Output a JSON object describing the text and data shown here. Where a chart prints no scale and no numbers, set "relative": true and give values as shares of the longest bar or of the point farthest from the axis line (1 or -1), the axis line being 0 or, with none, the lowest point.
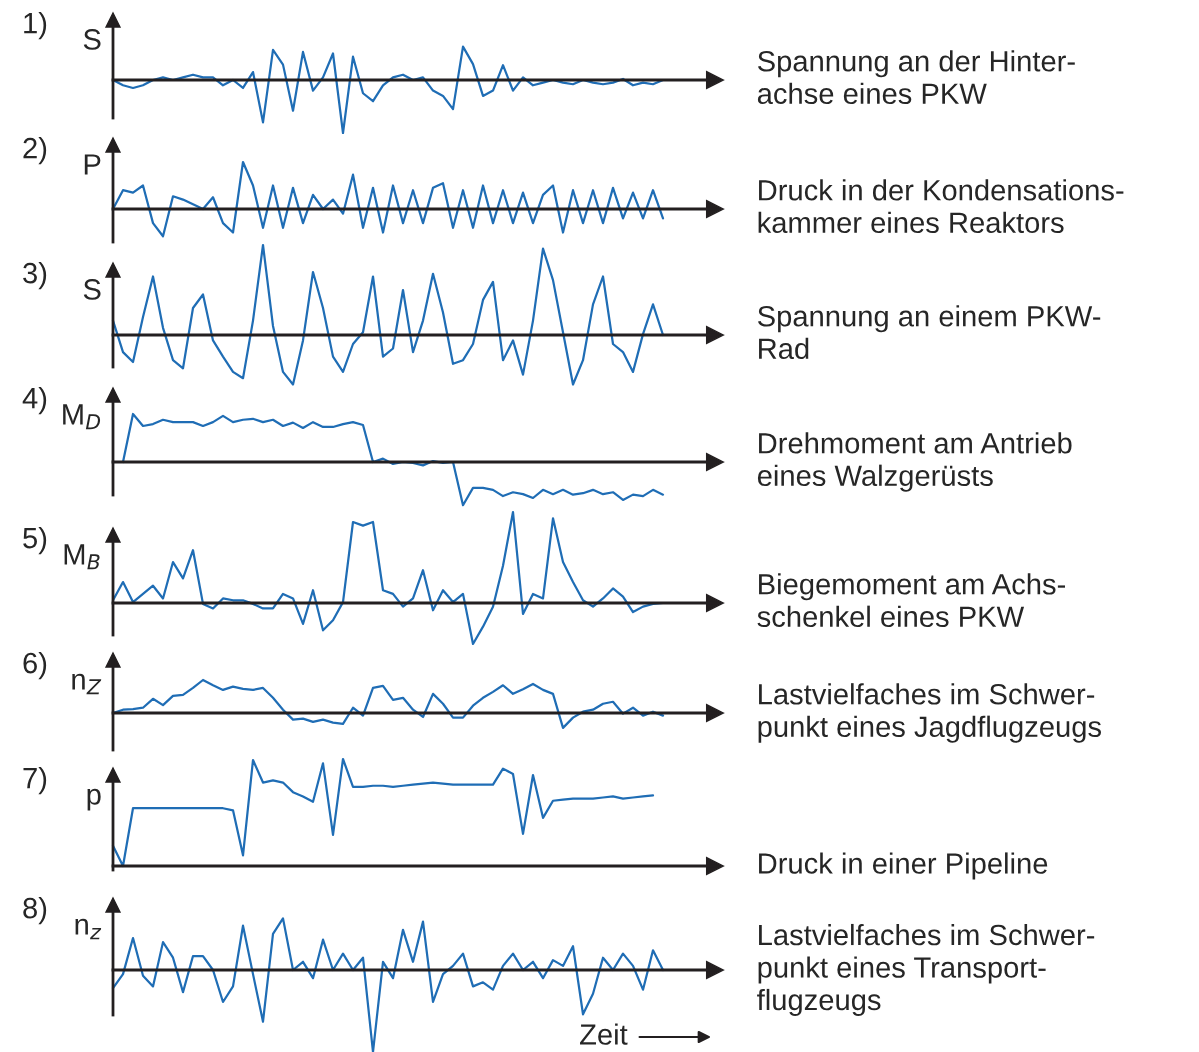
{
  "chart_data": [
    {
      "type": "line",
      "title": "1)",
      "ylabel": "S",
      "relative": true,
      "categories": [
        null,
        null,
        null,
        null,
        null,
        null,
        null,
        null,
        null,
        null,
        null,
        null,
        null,
        null,
        null,
        null,
        null,
        null,
        null,
        null,
        null,
        null,
        null,
        null,
        null,
        null,
        null,
        null,
        null,
        null,
        null,
        null,
        null,
        null,
        null,
        null,
        null,
        null,
        null,
        null,
        null,
        null,
        null,
        null,
        null,
        null,
        null,
        null,
        null,
        null,
        null,
        null,
        null,
        null,
        null,
        null,
        null,
        null
      ],
      "series": [
        {
          "color": "#1f6db5",
          "values": [
            0,
            -0.1,
            -0.15,
            -0.1,
            0,
            0.05,
            0,
            0.05,
            0.1,
            0.05,
            0.05,
            -0.1,
            0,
            -0.15,
            0.15,
            -0.8,
            0.57,
            0.29,
            -0.58,
            0.53,
            -0.2,
            0.05,
            0.5,
            -1.0,
            0.44,
            -0.25,
            -0.4,
            -0.1,
            0.05,
            0.1,
            0,
            0.05,
            -0.2,
            -0.3,
            -0.55,
            0.63,
            0.3,
            -0.3,
            -0.2,
            0.28,
            -0.2,
            0.05,
            -0.1,
            -0.05,
            0,
            -0.05,
            -0.08,
            0,
            -0.05,
            -0.08,
            -0.05,
            0.02,
            -0.1,
            -0.05,
            -0.08,
            0,
            0,
            0
          ]
        }
      ],
      "annotations": [
        "Spannung an der Hinter-\nachse eines PKW"
      ]
    },
    {
      "type": "line",
      "title": "2)",
      "ylabel": "P",
      "relative": true,
      "categories": [
        null,
        null,
        null,
        null,
        null,
        null,
        null,
        null,
        null,
        null,
        null,
        null,
        null,
        null,
        null,
        null,
        null,
        null,
        null,
        null,
        null,
        null,
        null,
        null,
        null,
        null,
        null,
        null,
        null,
        null,
        null,
        null,
        null,
        null,
        null,
        null,
        null,
        null,
        null,
        null,
        null,
        null,
        null,
        null,
        null,
        null,
        null,
        null,
        null,
        null,
        null,
        null,
        null,
        null,
        null,
        null,
        null,
        null
      ],
      "series": [
        {
          "color": "#1f6db5",
          "values": [
            0,
            0.4,
            0.35,
            0.5,
            -0.3,
            -0.58,
            0.27,
            0.2,
            0.1,
            0,
            0.25,
            -0.3,
            -0.5,
            1.0,
            0.5,
            -0.4,
            0.5,
            -0.4,
            0.45,
            -0.3,
            0.3,
            0,
            0.2,
            -0.1,
            0.73,
            -0.4,
            0.45,
            -0.5,
            0.5,
            -0.3,
            0.4,
            -0.3,
            0.45,
            0.55,
            -0.4,
            0.4,
            -0.4,
            0.5,
            -0.3,
            0.4,
            -0.3,
            0.35,
            -0.3,
            0.3,
            0.5,
            -0.5,
            0.4,
            -0.3,
            0.4,
            -0.3,
            0.45,
            -0.2,
            0.35,
            -0.2,
            0.4,
            -0.2,
            null,
            null
          ]
        }
      ],
      "annotations": [
        "Druck in der Kondensations-\nkammer eines Reaktors"
      ]
    },
    {
      "type": "line",
      "title": "3)",
      "ylabel": "S",
      "relative": true,
      "categories": [
        null,
        null,
        null,
        null,
        null,
        null,
        null,
        null,
        null,
        null,
        null,
        null,
        null,
        null,
        null,
        null,
        null,
        null,
        null,
        null,
        null,
        null,
        null,
        null,
        null,
        null,
        null,
        null,
        null,
        null,
        null,
        null,
        null,
        null,
        null,
        null,
        null,
        null,
        null,
        null,
        null,
        null,
        null,
        null,
        null,
        null,
        null,
        null,
        null,
        null,
        null,
        null,
        null,
        null,
        null,
        null,
        null,
        null
      ],
      "series": [
        {
          "color": "#1f6db5",
          "values": [
            0.16,
            -0.19,
            -0.3,
            0.2,
            0.65,
            0.08,
            -0.28,
            -0.37,
            0.3,
            0.45,
            -0.06,
            -0.24,
            -0.41,
            -0.48,
            0.16,
            1.0,
            0.1,
            -0.41,
            -0.55,
            -0.06,
            0.7,
            0.3,
            -0.24,
            -0.41,
            -0.1,
            0.03,
            0.65,
            -0.24,
            -0.15,
            0.5,
            -0.19,
            0.16,
            0.68,
            0.25,
            -0.32,
            -0.28,
            -0.1,
            0.39,
            0.59,
            -0.28,
            -0.06,
            -0.44,
            0.16,
            0.96,
            0.61,
            0.03,
            -0.55,
            -0.28,
            0.34,
            0.65,
            -0.1,
            -0.19,
            -0.41,
            0.01,
            0.34,
            0,
            null,
            null
          ]
        }
      ],
      "annotations": [
        "Spannung an einem PKW-\nRad"
      ]
    },
    {
      "type": "line",
      "title": "4)",
      "ylabel": "M$_{D}$",
      "relative": true,
      "categories": [
        null,
        null,
        null,
        null,
        null,
        null,
        null,
        null,
        null,
        null,
        null,
        null,
        null,
        null,
        null,
        null,
        null,
        null,
        null,
        null,
        null,
        null,
        null,
        null,
        null,
        null,
        null,
        null,
        null,
        null,
        null,
        null,
        null,
        null,
        null,
        null,
        null,
        null,
        null,
        null,
        null,
        null,
        null,
        null,
        null,
        null,
        null,
        null,
        null,
        null,
        null,
        null,
        null,
        null,
        null,
        null,
        null,
        null
      ],
      "series": [
        {
          "color": "#1f6db5",
          "values": [
            null,
            0,
            1.0,
            0.75,
            0.79,
            0.88,
            0.83,
            0.83,
            0.83,
            0.75,
            0.83,
            0.96,
            0.83,
            0.88,
            0.9,
            0.83,
            0.88,
            0.75,
            0.82,
            0.71,
            0.83,
            0.73,
            0.73,
            0.79,
            0.83,
            0.77,
            0,
            0.07,
            -0.04,
            0,
            -0.02,
            -0.07,
            0.02,
            -0.02,
            0,
            -0.9,
            -0.54,
            -0.54,
            -0.58,
            -0.71,
            -0.63,
            -0.67,
            -0.75,
            -0.58,
            -0.67,
            -0.58,
            -0.68,
            -0.65,
            -0.58,
            -0.67,
            -0.63,
            -0.79,
            -0.68,
            -0.71,
            -0.58,
            -0.68,
            null,
            null
          ]
        }
      ],
      "annotations": [
        "Drehmoment am Antrieb\neines Walzgerüsts"
      ]
    },
    {
      "type": "line",
      "title": "5)",
      "ylabel": "M$_{B}$",
      "relative": true,
      "categories": [
        null,
        null,
        null,
        null,
        null,
        null,
        null,
        null,
        null,
        null,
        null,
        null,
        null,
        null,
        null,
        null,
        null,
        null,
        null,
        null,
        null,
        null,
        null,
        null,
        null,
        null,
        null,
        null,
        null,
        null,
        null,
        null,
        null,
        null,
        null,
        null,
        null,
        null,
        null,
        null,
        null,
        null,
        null,
        null,
        null,
        null,
        null,
        null,
        null,
        null,
        null,
        null,
        null,
        null,
        null,
        null,
        null,
        null
      ],
      "series": [
        {
          "color": "#1f6db5",
          "values": [
            0.03,
            0.23,
            0.01,
            0.1,
            0.19,
            0.05,
            0.45,
            0.27,
            0.58,
            -0.01,
            -0.06,
            0.05,
            0.03,
            0.03,
            -0.01,
            -0.06,
            -0.06,
            0.1,
            0.05,
            -0.23,
            0.14,
            -0.3,
            -0.19,
            0.01,
            0.89,
            0.85,
            0.89,
            0.14,
            0.1,
            -0.04,
            0.05,
            0.36,
            -0.08,
            0.14,
            0.01,
            0.1,
            -0.45,
            -0.26,
            -0.04,
            0.41,
            1.0,
            -0.12,
            0.1,
            0.05,
            0.93,
            0.45,
            0.23,
            0.03,
            -0.04,
            0.05,
            0.16,
            0.07,
            -0.1,
            -0.04,
            -0.01,
            0,
            null,
            null
          ]
        }
      ],
      "annotations": [
        "Biegemoment am Achs-\nschenkel eines PKW"
      ]
    },
    {
      "type": "line",
      "title": "6)",
      "ylabel": "n$_{Z}$",
      "relative": true,
      "categories": [
        null,
        null,
        null,
        null,
        null,
        null,
        null,
        null,
        null,
        null,
        null,
        null,
        null,
        null,
        null,
        null,
        null,
        null,
        null,
        null,
        null,
        null,
        null,
        null,
        null,
        null,
        null,
        null,
        null,
        null,
        null,
        null,
        null,
        null,
        null,
        null,
        null,
        null,
        null,
        null,
        null,
        null,
        null,
        null,
        null,
        null,
        null,
        null,
        null,
        null,
        null,
        null,
        null,
        null,
        null,
        null,
        null,
        null
      ],
      "series": [
        {
          "color": "#1f6db5",
          "values": [
            0,
            0.1,
            0.12,
            0.16,
            0.43,
            0.24,
            0.52,
            0.55,
            0.76,
            1.0,
            0.84,
            0.7,
            0.8,
            0.73,
            0.7,
            0.76,
            0.46,
            0.1,
            -0.2,
            -0.17,
            -0.27,
            -0.2,
            -0.29,
            -0.33,
            0.16,
            -0.08,
            0.76,
            0.82,
            0.4,
            0.46,
            0.1,
            -0.12,
            0.58,
            0.28,
            -0.14,
            -0.14,
            0.22,
            0.46,
            0.64,
            0.84,
            0.58,
            0.72,
            0.88,
            0.7,
            0.58,
            -0.45,
            -0.14,
            0.04,
            0.1,
            0.28,
            0.34,
            -0.02,
            0.16,
            -0.08,
            0.04,
            -0.08,
            null,
            null
          ]
        }
      ],
      "annotations": [
        "Lastvielfaches im Schwer-\npunkt eines Jagdflugzeugs"
      ]
    },
    {
      "type": "line",
      "title": "7)",
      "ylabel": "p",
      "relative": true,
      "categories": [
        null,
        null,
        null,
        null,
        null,
        null,
        null,
        null,
        null,
        null,
        null,
        null,
        null,
        null,
        null,
        null,
        null,
        null,
        null,
        null,
        null,
        null,
        null,
        null,
        null,
        null,
        null,
        null,
        null,
        null,
        null,
        null,
        null,
        null,
        null,
        null,
        null,
        null,
        null,
        null,
        null,
        null,
        null,
        null,
        null,
        null,
        null,
        null,
        null,
        null,
        null,
        null,
        null,
        null,
        null,
        null,
        null,
        null
      ],
      "series": [
        {
          "color": "#1f6db5",
          "values": [
            0.19,
            0,
            0.54,
            0.54,
            0.54,
            0.54,
            0.54,
            0.54,
            0.54,
            0.54,
            0.54,
            0.54,
            0.52,
            0.1,
            0.99,
            0.78,
            0.8,
            0.78,
            0.69,
            0.65,
            0.6,
            0.96,
            0.29,
            1.0,
            0.74,
            0.74,
            0.75,
            0.75,
            0.74,
            0.75,
            0.76,
            0.77,
            0.78,
            0.77,
            0.76,
            0.76,
            0.76,
            0.76,
            0.76,
            0.91,
            0.86,
            0.3,
            0.85,
            0.45,
            0.61,
            0.62,
            0.63,
            0.63,
            0.63,
            0.64,
            0.65,
            0.63,
            0.64,
            0.65,
            0.66,
            null,
            null,
            null
          ]
        }
      ],
      "annotations": [
        "Druck in einer Pipeline"
      ]
    },
    {
      "type": "line",
      "title": "8)",
      "ylabel": "n$_{z}$",
      "xlabel": "Zeit",
      "relative": true,
      "categories": [
        null,
        null,
        null,
        null,
        null,
        null,
        null,
        null,
        null,
        null,
        null,
        null,
        null,
        null,
        null,
        null,
        null,
        null,
        null,
        null,
        null,
        null,
        null,
        null,
        null,
        null,
        null,
        null,
        null,
        null,
        null,
        null,
        null,
        null,
        null,
        null,
        null,
        null,
        null,
        null,
        null,
        null,
        null,
        null,
        null,
        null,
        null,
        null,
        null,
        null,
        null,
        null,
        null,
        null,
        null,
        null,
        null,
        null
      ],
      "series": [
        {
          "color": "#1f6db5",
          "values": [
            -0.22,
            -0.05,
            0.39,
            -0.07,
            -0.2,
            0.34,
            0.15,
            -0.27,
            0.17,
            0.17,
            0,
            -0.39,
            -0.2,
            0.54,
            -0.05,
            -0.63,
            0.44,
            0.63,
            0,
            0.1,
            -0.1,
            0.37,
            0,
            0.2,
            0,
            0.15,
            -1.0,
            0.1,
            -0.1,
            0.49,
            0.1,
            0.59,
            -0.39,
            -0.05,
            0.05,
            0.2,
            -0.2,
            -0.15,
            -0.24,
            0.05,
            0.2,
            0,
            0.1,
            -0.1,
            0.12,
            0.05,
            0.29,
            -0.54,
            -0.29,
            0.15,
            0,
            0.2,
            0.05,
            -0.24,
            0.24,
            0,
            null,
            null
          ]
        }
      ],
      "annotations": [
        "Lastvielfaches im Schwer-\npunkt eines Transport-\nflugzeugs"
      ]
    }
  ]
}
